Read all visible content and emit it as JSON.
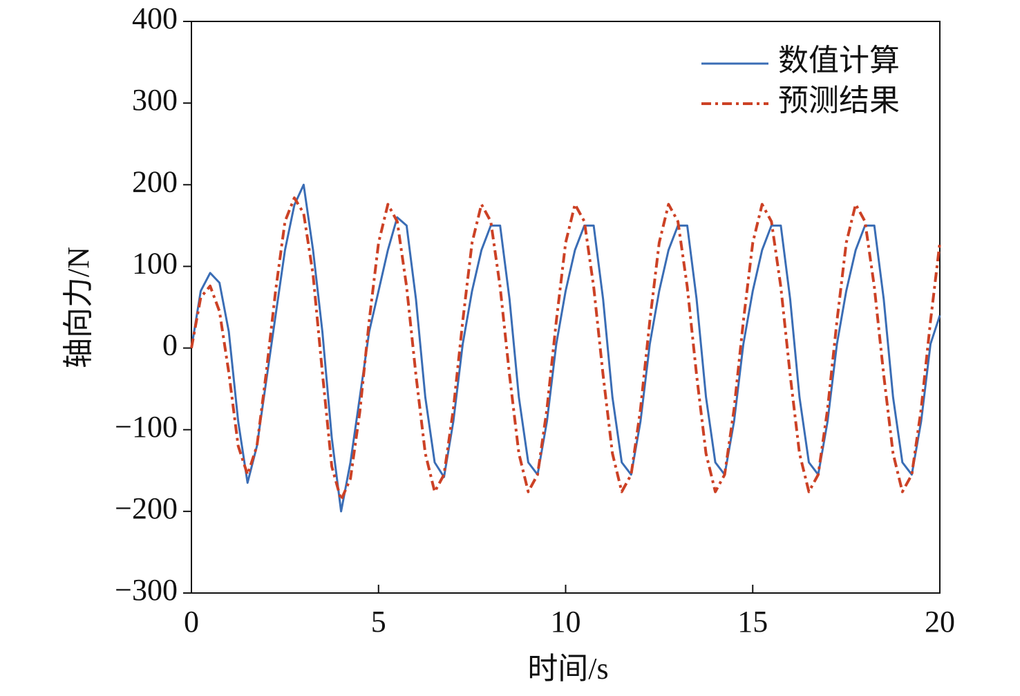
{
  "chart_data": {
    "type": "line",
    "x_label": "时间/s",
    "y_label": "轴向力/N",
    "x": [
      0,
      0.25,
      0.5,
      0.75,
      1,
      1.25,
      1.5,
      1.75,
      2,
      2.25,
      2.5,
      2.75,
      3,
      3.25,
      3.5,
      3.75,
      4,
      4.25,
      4.5,
      4.75,
      5,
      5.25,
      5.5,
      5.75,
      6,
      6.25,
      6.5,
      6.75,
      7,
      7.25,
      7.5,
      7.75,
      8,
      8.25,
      8.5,
      8.75,
      9,
      9.25,
      9.5,
      9.75,
      10,
      10.25,
      10.5,
      10.75,
      11,
      11.25,
      11.5,
      11.75,
      12,
      12.25,
      12.5,
      12.75,
      13,
      13.25,
      13.5,
      13.75,
      14,
      14.25,
      14.5,
      14.75,
      15,
      15.25,
      15.5,
      15.75,
      16,
      16.25,
      16.5,
      16.75,
      17,
      17.25,
      17.5,
      17.75,
      18,
      18.25,
      18.5,
      18.75,
      19,
      19.25,
      19.5,
      19.75,
      20
    ],
    "series": [
      {
        "name": "数值计算",
        "color": "#3a6db5",
        "dash": "solid",
        "values": [
          0,
          70,
          92,
          80,
          20,
          -90,
          -165,
          -120,
          -40,
          40,
          120,
          175,
          200,
          120,
          20,
          -110,
          -200,
          -140,
          -60,
          20,
          70,
          120,
          160,
          150,
          60,
          -60,
          -140,
          -158,
          -90,
          5,
          70,
          120,
          150,
          150,
          60,
          -60,
          -140,
          -155,
          -90,
          5,
          70,
          120,
          150,
          150,
          60,
          -60,
          -140,
          -155,
          -90,
          5,
          70,
          120,
          150,
          150,
          60,
          -60,
          -140,
          -155,
          -90,
          5,
          70,
          120,
          150,
          150,
          60,
          -60,
          -140,
          -155,
          -90,
          5,
          70,
          120,
          150,
          150,
          60,
          -60,
          -140,
          -155,
          -90,
          5,
          40
        ]
      },
      {
        "name": "预测结果",
        "color": "#cc4125",
        "dash": "dashdot",
        "values": [
          0,
          62,
          76,
          45,
          -30,
          -120,
          -155,
          -120,
          -30,
          70,
          155,
          184,
          165,
          90,
          -30,
          -145,
          -186,
          -160,
          -78,
          33,
          129,
          176,
          155,
          75,
          -33,
          -129,
          -176,
          -155,
          -75,
          33,
          129,
          176,
          155,
          75,
          -33,
          -129,
          -176,
          -155,
          -75,
          33,
          129,
          176,
          155,
          75,
          -33,
          -129,
          -176,
          -155,
          -75,
          33,
          129,
          176,
          155,
          75,
          -33,
          -129,
          -176,
          -155,
          -75,
          33,
          129,
          176,
          155,
          75,
          -33,
          -129,
          -176,
          -155,
          -75,
          33,
          129,
          176,
          155,
          75,
          -33,
          -129,
          -176,
          -155,
          -75,
          33,
          129
        ]
      }
    ],
    "xlim": [
      0,
      20
    ],
    "xticks": [
      0,
      5,
      10,
      15,
      20
    ],
    "ylim": [
      -300,
      400
    ],
    "yticks": [
      {
        "value": -300,
        "label": "−300"
      },
      {
        "value": -200,
        "label": "−200"
      },
      {
        "value": -100,
        "label": "−100"
      },
      0,
      100,
      200,
      300,
      400
    ],
    "legend": "upper-right",
    "grid": false
  }
}
